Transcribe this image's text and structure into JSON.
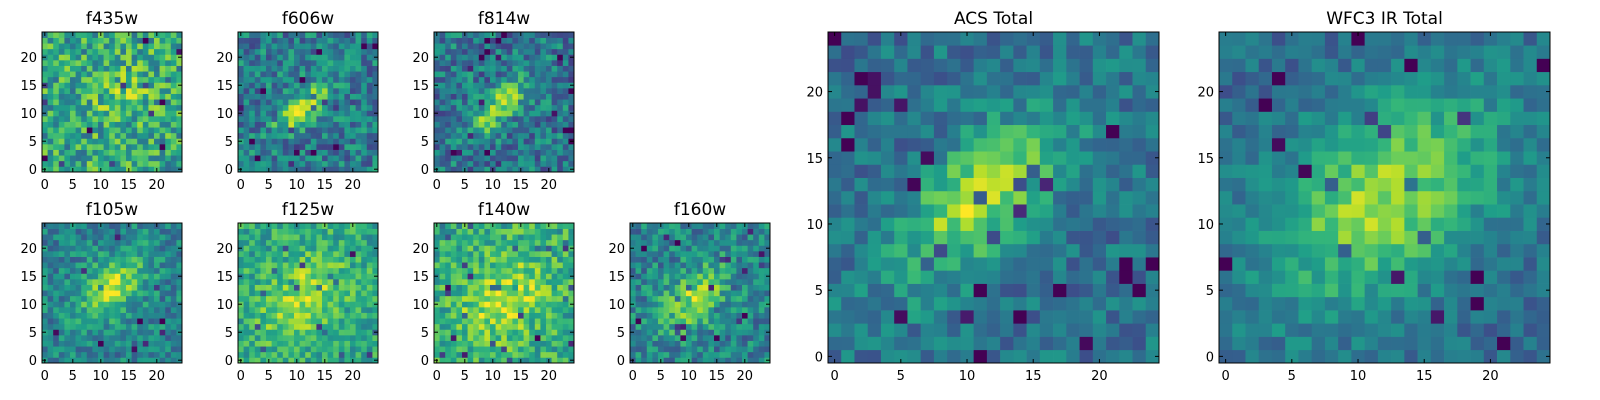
{
  "figure": {
    "colormap": "viridis",
    "colormap_stops": [
      "#440154",
      "#482878",
      "#3e4a89",
      "#31688e",
      "#26828e",
      "#1f9e89",
      "#35b779",
      "#6ece58",
      "#b5de2b",
      "#fde725"
    ]
  },
  "chart_data": [
    {
      "type": "heatmap",
      "title": "f435w",
      "grid_size": [
        25,
        25
      ],
      "x_ticks": [
        0,
        5,
        10,
        15,
        20
      ],
      "y_ticks": [
        0,
        5,
        10,
        15,
        20
      ],
      "xlim": [
        0,
        24
      ],
      "ylim": [
        0,
        24
      ],
      "brightness": {
        "peak": [
          14,
          13
        ],
        "sigma": [
          3.5,
          2.6
        ],
        "angle_deg": 35,
        "amplitude": 0.18,
        "base": 0.6,
        "noise": 0.26
      }
    },
    {
      "type": "heatmap",
      "title": "f606w",
      "grid_size": [
        25,
        25
      ],
      "x_ticks": [
        0,
        5,
        10,
        15,
        20
      ],
      "y_ticks": [
        0,
        5,
        10,
        15,
        20
      ],
      "xlim": [
        0,
        24
      ],
      "ylim": [
        0,
        24
      ],
      "brightness": {
        "peak": [
          11,
          11
        ],
        "sigma": [
          4.5,
          1.6
        ],
        "angle_deg": 45,
        "amplitude": 0.45,
        "base": 0.42,
        "noise": 0.22
      }
    },
    {
      "type": "heatmap",
      "title": "f814w",
      "grid_size": [
        25,
        25
      ],
      "x_ticks": [
        0,
        5,
        10,
        15,
        20
      ],
      "y_ticks": [
        0,
        5,
        10,
        15,
        20
      ],
      "xlim": [
        0,
        24
      ],
      "ylim": [
        0,
        24
      ],
      "brightness": {
        "peak": [
          11,
          11
        ],
        "sigma": [
          4.5,
          1.7
        ],
        "angle_deg": 45,
        "amplitude": 0.48,
        "base": 0.4,
        "noise": 0.22
      }
    },
    {
      "type": "heatmap",
      "title": "f105w",
      "grid_size": [
        25,
        25
      ],
      "x_ticks": [
        0,
        5,
        10,
        15,
        20
      ],
      "y_ticks": [
        0,
        5,
        10,
        15,
        20
      ],
      "xlim": [
        0,
        24
      ],
      "ylim": [
        0,
        24
      ],
      "brightness": {
        "peak": [
          12,
          13
        ],
        "sigma": [
          5,
          3
        ],
        "angle_deg": 45,
        "amplitude": 0.42,
        "base": 0.45,
        "noise": 0.18
      }
    },
    {
      "type": "heatmap",
      "title": "f125w",
      "grid_size": [
        25,
        25
      ],
      "x_ticks": [
        0,
        5,
        10,
        15,
        20
      ],
      "y_ticks": [
        0,
        5,
        10,
        15,
        20
      ],
      "xlim": [
        0,
        24
      ],
      "ylim": [
        0,
        24
      ],
      "brightness": {
        "peak": [
          11,
          11
        ],
        "sigma": [
          6,
          4
        ],
        "angle_deg": 45,
        "amplitude": 0.28,
        "base": 0.6,
        "noise": 0.18
      }
    },
    {
      "type": "heatmap",
      "title": "f140w",
      "grid_size": [
        25,
        25
      ],
      "x_ticks": [
        0,
        5,
        10,
        15,
        20
      ],
      "y_ticks": [
        0,
        5,
        10,
        15,
        20
      ],
      "xlim": [
        0,
        24
      ],
      "ylim": [
        0,
        24
      ],
      "brightness": {
        "peak": [
          12,
          11
        ],
        "sigma": [
          6,
          4
        ],
        "angle_deg": 45,
        "amplitude": 0.3,
        "base": 0.62,
        "noise": 0.2
      }
    },
    {
      "type": "heatmap",
      "title": "f160w",
      "grid_size": [
        25,
        25
      ],
      "x_ticks": [
        0,
        5,
        10,
        15,
        20
      ],
      "y_ticks": [
        0,
        5,
        10,
        15,
        20
      ],
      "xlim": [
        0,
        24
      ],
      "ylim": [
        0,
        24
      ],
      "brightness": {
        "peak": [
          11,
          11
        ],
        "sigma": [
          5,
          3
        ],
        "angle_deg": 45,
        "amplitude": 0.38,
        "base": 0.45,
        "noise": 0.2
      }
    },
    {
      "type": "heatmap",
      "title": "ACS Total",
      "grid_size": [
        25,
        25
      ],
      "x_ticks": [
        0,
        5,
        10,
        15,
        20
      ],
      "y_ticks": [
        0,
        5,
        10,
        15,
        20
      ],
      "xlim": [
        0,
        24
      ],
      "ylim": [
        0,
        24
      ],
      "brightness": {
        "peak": [
          11,
          12
        ],
        "sigma": [
          5.5,
          2.5
        ],
        "angle_deg": 45,
        "amplitude": 0.5,
        "base": 0.38,
        "noise": 0.15
      }
    },
    {
      "type": "heatmap",
      "title": "WFC3 IR Total",
      "grid_size": [
        25,
        25
      ],
      "x_ticks": [
        0,
        5,
        10,
        15,
        20
      ],
      "y_ticks": [
        0,
        5,
        10,
        15,
        20
      ],
      "xlim": [
        0,
        24
      ],
      "ylim": [
        0,
        24
      ],
      "brightness": {
        "peak": [
          12,
          12
        ],
        "sigma": [
          7,
          4.5
        ],
        "angle_deg": 40,
        "amplitude": 0.5,
        "base": 0.35,
        "noise": 0.12
      }
    }
  ]
}
